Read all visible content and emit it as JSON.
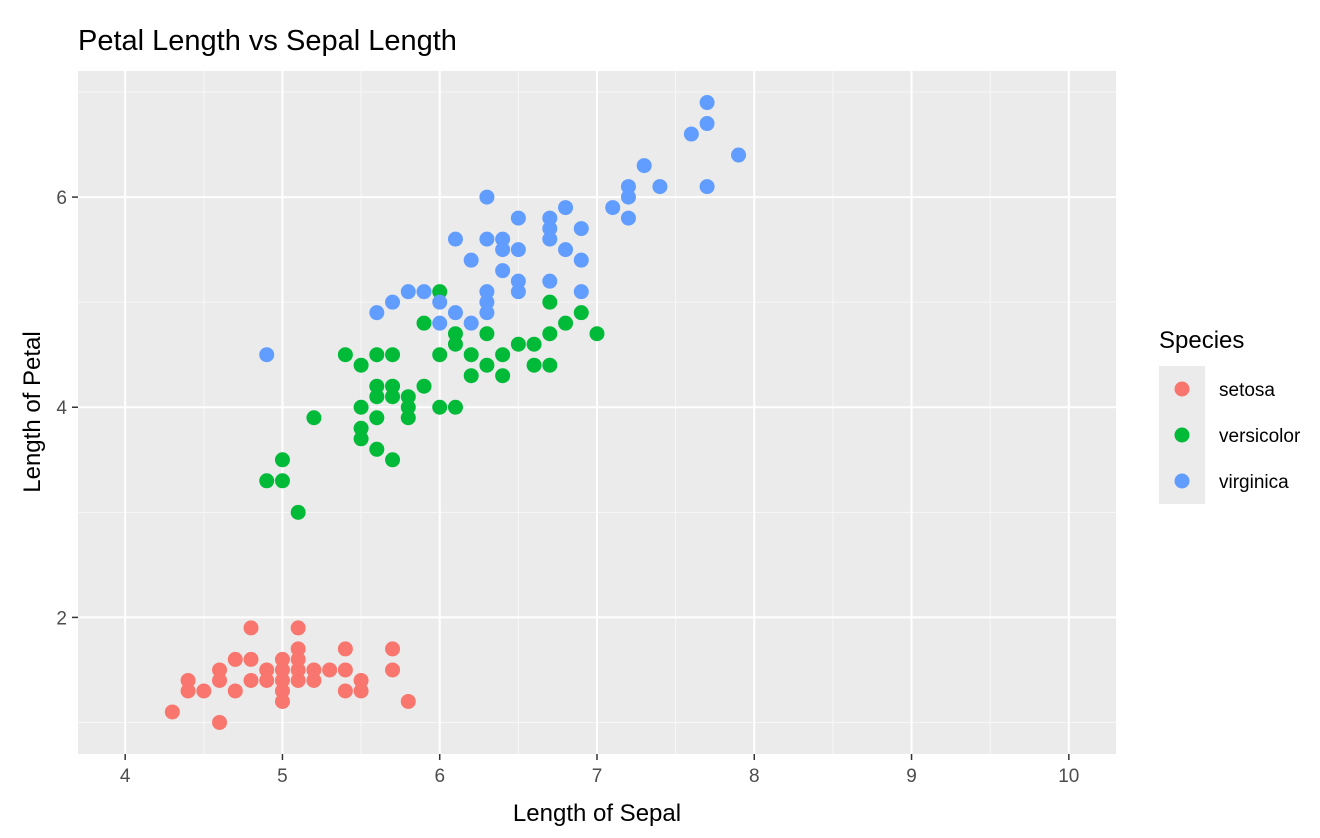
{
  "chart_data": {
    "type": "scatter",
    "title": "Petal Length vs Sepal Length",
    "xlabel": "Length of Sepal",
    "ylabel": "Length of Petal",
    "xlim": [
      3.7,
      10.3
    ],
    "ylim": [
      0.7,
      7.2
    ],
    "x_ticks": [
      "4",
      "5",
      "6",
      "7",
      "8",
      "9",
      "10"
    ],
    "y_ticks": [
      "2",
      "4",
      "6"
    ],
    "grid": true,
    "background": "#ebebeb",
    "legend": {
      "title": "Species",
      "position": "right"
    },
    "series": [
      {
        "name": "setosa",
        "color": "#f8766d",
        "points": [
          [
            4.3,
            1.1
          ],
          [
            4.4,
            1.3
          ],
          [
            4.4,
            1.4
          ],
          [
            4.5,
            1.3
          ],
          [
            4.6,
            1.0
          ],
          [
            4.6,
            1.4
          ],
          [
            4.6,
            1.5
          ],
          [
            4.7,
            1.3
          ],
          [
            4.7,
            1.6
          ],
          [
            4.8,
            1.4
          ],
          [
            4.8,
            1.6
          ],
          [
            4.8,
            1.9
          ],
          [
            4.9,
            1.4
          ],
          [
            4.9,
            1.5
          ],
          [
            5.0,
            1.2
          ],
          [
            5.0,
            1.3
          ],
          [
            5.0,
            1.4
          ],
          [
            5.0,
            1.5
          ],
          [
            5.0,
            1.6
          ],
          [
            5.1,
            1.4
          ],
          [
            5.1,
            1.5
          ],
          [
            5.1,
            1.6
          ],
          [
            5.1,
            1.7
          ],
          [
            5.1,
            1.9
          ],
          [
            5.2,
            1.4
          ],
          [
            5.2,
            1.5
          ],
          [
            5.3,
            1.5
          ],
          [
            5.4,
            1.3
          ],
          [
            5.4,
            1.5
          ],
          [
            5.4,
            1.7
          ],
          [
            5.5,
            1.3
          ],
          [
            5.5,
            1.4
          ],
          [
            5.7,
            1.5
          ],
          [
            5.7,
            1.7
          ],
          [
            5.8,
            1.2
          ]
        ]
      },
      {
        "name": "versicolor",
        "color": "#00ba38",
        "points": [
          [
            4.9,
            3.3
          ],
          [
            5.0,
            3.3
          ],
          [
            5.0,
            3.5
          ],
          [
            5.1,
            3.0
          ],
          [
            5.2,
            3.9
          ],
          [
            5.4,
            4.5
          ],
          [
            5.5,
            3.7
          ],
          [
            5.5,
            3.8
          ],
          [
            5.5,
            4.0
          ],
          [
            5.5,
            4.4
          ],
          [
            5.6,
            3.6
          ],
          [
            5.6,
            3.9
          ],
          [
            5.6,
            4.1
          ],
          [
            5.6,
            4.2
          ],
          [
            5.6,
            4.5
          ],
          [
            5.7,
            3.5
          ],
          [
            5.7,
            4.1
          ],
          [
            5.7,
            4.2
          ],
          [
            5.7,
            4.5
          ],
          [
            5.8,
            3.9
          ],
          [
            5.8,
            4.0
          ],
          [
            5.8,
            4.1
          ],
          [
            5.9,
            4.2
          ],
          [
            5.9,
            4.8
          ],
          [
            6.0,
            4.0
          ],
          [
            6.0,
            4.5
          ],
          [
            6.0,
            5.1
          ],
          [
            6.1,
            4.0
          ],
          [
            6.1,
            4.6
          ],
          [
            6.1,
            4.7
          ],
          [
            6.2,
            4.3
          ],
          [
            6.2,
            4.5
          ],
          [
            6.3,
            4.4
          ],
          [
            6.3,
            4.7
          ],
          [
            6.4,
            4.3
          ],
          [
            6.4,
            4.5
          ],
          [
            6.5,
            4.6
          ],
          [
            6.6,
            4.4
          ],
          [
            6.6,
            4.6
          ],
          [
            6.7,
            4.4
          ],
          [
            6.7,
            4.7
          ],
          [
            6.7,
            5.0
          ],
          [
            6.8,
            4.8
          ],
          [
            6.9,
            4.9
          ],
          [
            7.0,
            4.7
          ]
        ]
      },
      {
        "name": "virginica",
        "color": "#619cff",
        "points": [
          [
            4.9,
            4.5
          ],
          [
            5.6,
            4.9
          ],
          [
            5.7,
            5.0
          ],
          [
            5.8,
            5.1
          ],
          [
            5.9,
            5.1
          ],
          [
            6.0,
            4.8
          ],
          [
            6.0,
            5.0
          ],
          [
            6.1,
            4.9
          ],
          [
            6.1,
            5.6
          ],
          [
            6.2,
            4.8
          ],
          [
            6.2,
            5.4
          ],
          [
            6.3,
            4.9
          ],
          [
            6.3,
            5.0
          ],
          [
            6.3,
            5.1
          ],
          [
            6.3,
            5.6
          ],
          [
            6.3,
            6.0
          ],
          [
            6.4,
            5.3
          ],
          [
            6.4,
            5.5
          ],
          [
            6.4,
            5.6
          ],
          [
            6.5,
            5.1
          ],
          [
            6.5,
            5.2
          ],
          [
            6.5,
            5.5
          ],
          [
            6.5,
            5.8
          ],
          [
            6.7,
            5.2
          ],
          [
            6.7,
            5.6
          ],
          [
            6.7,
            5.7
          ],
          [
            6.7,
            5.8
          ],
          [
            6.8,
            5.5
          ],
          [
            6.8,
            5.9
          ],
          [
            6.9,
            5.1
          ],
          [
            6.9,
            5.4
          ],
          [
            6.9,
            5.7
          ],
          [
            7.1,
            5.9
          ],
          [
            7.2,
            5.8
          ],
          [
            7.2,
            6.0
          ],
          [
            7.2,
            6.1
          ],
          [
            7.3,
            6.3
          ],
          [
            7.4,
            6.1
          ],
          [
            7.6,
            6.6
          ],
          [
            7.7,
            6.1
          ],
          [
            7.7,
            6.7
          ],
          [
            7.7,
            6.9
          ],
          [
            7.9,
            6.4
          ]
        ]
      }
    ]
  }
}
